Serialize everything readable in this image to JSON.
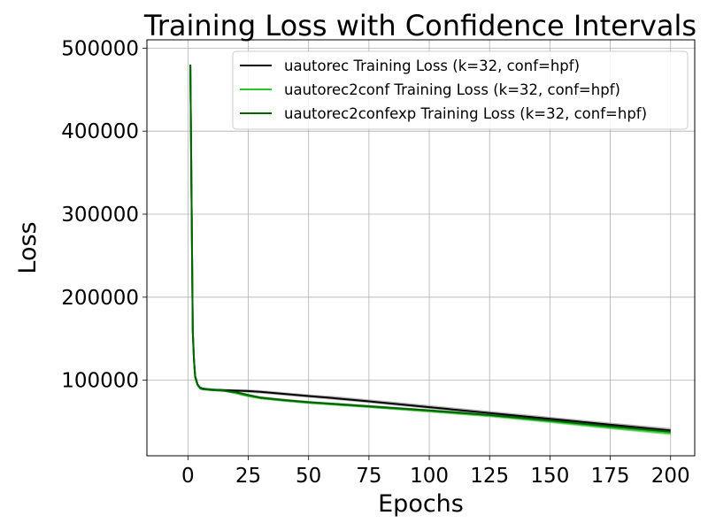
{
  "chart_data": {
    "type": "line",
    "title": "Training Loss with Confidence Intervals",
    "xlabel": "Epochs",
    "ylabel": "Loss",
    "xlim": [
      -17,
      210
    ],
    "ylim": [
      9000,
      510000
    ],
    "x_ticks": [
      0,
      25,
      50,
      75,
      100,
      125,
      150,
      175,
      200
    ],
    "y_ticks": [
      100000,
      200000,
      300000,
      400000,
      500000
    ],
    "grid": true,
    "legend_position": "top-right",
    "x": [
      1,
      1.5,
      2,
      2.5,
      3,
      4,
      5,
      6,
      8,
      10,
      15,
      20,
      25,
      30,
      40,
      50,
      60,
      75,
      100,
      125,
      150,
      175,
      200
    ],
    "series": [
      {
        "name": "uautorec Training Loss (k=32, conf=hpf)",
        "color": "#000000",
        "values": [
          480000,
          320000,
          160000,
          125000,
          105000,
          95000,
          91000,
          90000,
          89000,
          88500,
          88000,
          87500,
          87000,
          86000,
          83500,
          81000,
          78500,
          74500,
          67500,
          60500,
          53500,
          46500,
          39500
        ],
        "ci_low": [
          478000,
          318000,
          158000,
          123000,
          103000,
          93500,
          89500,
          88500,
          87500,
          87000,
          86500,
          86000,
          85000,
          84000,
          81500,
          79000,
          76500,
          72500,
          65500,
          58500,
          51500,
          44000,
          37000
        ],
        "ci_high": [
          482000,
          322000,
          162000,
          127000,
          107000,
          96500,
          92500,
          91500,
          90500,
          90000,
          89500,
          89000,
          89000,
          88000,
          85500,
          83000,
          81000,
          77000,
          70000,
          63000,
          56000,
          49000,
          42500
        ],
        "ci_color": "#a0a0a0"
      },
      {
        "name": "uautorec2conf Training Loss (k=32, conf=hpf)",
        "color": "#2dc42d",
        "values": [
          478000,
          318000,
          158000,
          123000,
          103000,
          94000,
          90500,
          89500,
          89000,
          88500,
          87500,
          84500,
          81000,
          78500,
          75500,
          73000,
          71000,
          68000,
          63000,
          57500,
          50500,
          43000,
          36500
        ],
        "ci_low": [
          476000,
          316000,
          156000,
          121000,
          101000,
          92500,
          89000,
          88000,
          87500,
          87000,
          86000,
          83000,
          79500,
          77000,
          74000,
          71500,
          69500,
          66500,
          61000,
          55500,
          48500,
          41000,
          34000
        ],
        "ci_high": [
          480000,
          320000,
          160000,
          125000,
          105000,
          95500,
          92000,
          91000,
          90500,
          90000,
          89000,
          86000,
          82500,
          80000,
          77000,
          74500,
          72500,
          69500,
          64500,
          59000,
          52000,
          45000,
          38500
        ],
        "ci_color": "#2dc42d"
      },
      {
        "name": "uautorec2confexp Training Loss (k=32, conf=hpf)",
        "color": "#006400",
        "values": [
          480000,
          319000,
          159000,
          124000,
          104000,
          94500,
          90500,
          89500,
          89000,
          88500,
          87500,
          85500,
          82000,
          79000,
          76000,
          73500,
          71500,
          68500,
          63500,
          58000,
          51500,
          44500,
          38000
        ],
        "ci_low": [
          478000,
          317000,
          157000,
          122000,
          102000,
          93000,
          89000,
          88000,
          87500,
          87000,
          86000,
          84000,
          80500,
          77500,
          74500,
          72000,
          70000,
          67000,
          62000,
          56500,
          50000,
          43000,
          36500
        ],
        "ci_high": [
          482000,
          321000,
          161000,
          126000,
          106000,
          96000,
          92000,
          91000,
          90500,
          90000,
          89000,
          87000,
          83500,
          80500,
          77500,
          75000,
          73000,
          70000,
          65000,
          59500,
          53000,
          46000,
          39500
        ],
        "ci_color": "#006400"
      }
    ]
  }
}
